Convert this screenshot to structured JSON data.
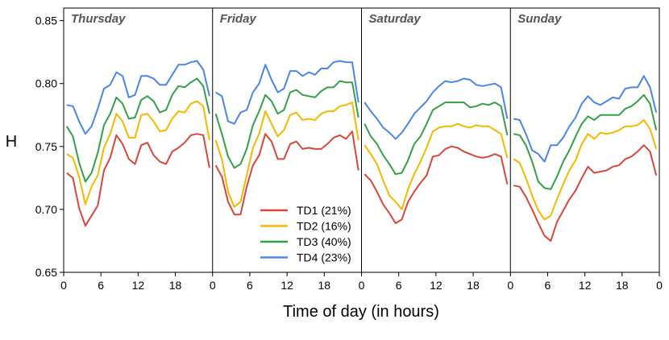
{
  "chart_data": {
    "type": "line",
    "xlabel": "Time of day (in hours)",
    "ylabel": "H",
    "ylim": [
      0.65,
      0.86
    ],
    "y_ticks": [
      "0.65",
      "0.70",
      "0.75",
      "0.80",
      "0.85"
    ],
    "x_tick_labels": [
      "0",
      "6",
      "12",
      "18",
      "0",
      "6",
      "12",
      "18",
      "0",
      "6",
      "12",
      "18",
      "0",
      "6",
      "12",
      "18",
      "0"
    ],
    "panels": [
      "Thursday",
      "Friday",
      "Saturday",
      "Sunday"
    ],
    "grid": false,
    "legend_position": "bottom-center",
    "x_hours": [
      0.5,
      1.5,
      2.5,
      3.5,
      4.5,
      5.5,
      6.5,
      7.5,
      8.5,
      9.5,
      10.5,
      11.5,
      12.5,
      13.5,
      14.5,
      15.5,
      16.5,
      17.5,
      18.5,
      19.5,
      20.5,
      21.5,
      22.5,
      23.5
    ],
    "series": [
      {
        "name": "TD1 (21%)",
        "color": "#d9473b",
        "values": {
          "Thursday": [
            0.729,
            0.725,
            0.701,
            0.687,
            0.695,
            0.703,
            0.731,
            0.741,
            0.759,
            0.752,
            0.74,
            0.736,
            0.751,
            0.753,
            0.743,
            0.738,
            0.736,
            0.746,
            0.749,
            0.753,
            0.759,
            0.76,
            0.759,
            0.733
          ],
          "Friday": [
            0.735,
            0.726,
            0.706,
            0.696,
            0.696,
            0.718,
            0.735,
            0.743,
            0.76,
            0.754,
            0.74,
            0.74,
            0.752,
            0.754,
            0.748,
            0.749,
            0.748,
            0.748,
            0.752,
            0.757,
            0.759,
            0.756,
            0.762,
            0.731
          ],
          "Saturday": [
            0.728,
            0.723,
            0.714,
            0.704,
            0.697,
            0.689,
            0.692,
            0.706,
            0.714,
            0.721,
            0.727,
            0.742,
            0.743,
            0.748,
            0.75,
            0.749,
            0.746,
            0.744,
            0.742,
            0.741,
            0.742,
            0.744,
            0.742,
            0.72
          ],
          "Sunday": [
            0.719,
            0.718,
            0.71,
            0.7,
            0.689,
            0.679,
            0.675,
            0.69,
            0.699,
            0.708,
            0.715,
            0.725,
            0.734,
            0.729,
            0.73,
            0.731,
            0.734,
            0.735,
            0.74,
            0.742,
            0.746,
            0.751,
            0.746,
            0.727
          ]
        }
      },
      {
        "name": "TD2 (16%)",
        "color": "#f5b800",
        "values": {
          "Thursday": [
            0.744,
            0.741,
            0.726,
            0.704,
            0.718,
            0.727,
            0.749,
            0.76,
            0.776,
            0.77,
            0.757,
            0.757,
            0.775,
            0.776,
            0.77,
            0.762,
            0.763,
            0.772,
            0.778,
            0.777,
            0.784,
            0.786,
            0.782,
            0.755
          ],
          "Friday": [
            0.755,
            0.74,
            0.714,
            0.702,
            0.706,
            0.727,
            0.749,
            0.76,
            0.778,
            0.768,
            0.758,
            0.763,
            0.775,
            0.777,
            0.771,
            0.772,
            0.771,
            0.776,
            0.778,
            0.778,
            0.782,
            0.783,
            0.785,
            0.755
          ],
          "Saturday": [
            0.751,
            0.744,
            0.736,
            0.723,
            0.711,
            0.706,
            0.7,
            0.716,
            0.728,
            0.738,
            0.749,
            0.762,
            0.765,
            0.766,
            0.766,
            0.768,
            0.766,
            0.765,
            0.767,
            0.766,
            0.766,
            0.763,
            0.76,
            0.741
          ],
          "Sunday": [
            0.74,
            0.737,
            0.725,
            0.711,
            0.699,
            0.692,
            0.695,
            0.708,
            0.72,
            0.731,
            0.739,
            0.752,
            0.76,
            0.756,
            0.761,
            0.76,
            0.761,
            0.763,
            0.766,
            0.766,
            0.767,
            0.771,
            0.764,
            0.748
          ]
        }
      },
      {
        "name": "TD3 (40%)",
        "color": "#34a047",
        "values": {
          "Thursday": [
            0.766,
            0.758,
            0.737,
            0.722,
            0.729,
            0.745,
            0.767,
            0.776,
            0.789,
            0.784,
            0.772,
            0.773,
            0.787,
            0.79,
            0.786,
            0.777,
            0.779,
            0.791,
            0.798,
            0.797,
            0.801,
            0.804,
            0.798,
            0.776
          ],
          "Friday": [
            0.776,
            0.76,
            0.742,
            0.733,
            0.736,
            0.748,
            0.767,
            0.778,
            0.791,
            0.786,
            0.776,
            0.779,
            0.793,
            0.795,
            0.791,
            0.79,
            0.789,
            0.794,
            0.797,
            0.797,
            0.802,
            0.801,
            0.801,
            0.773
          ],
          "Saturday": [
            0.768,
            0.758,
            0.752,
            0.743,
            0.736,
            0.728,
            0.729,
            0.739,
            0.752,
            0.758,
            0.768,
            0.779,
            0.782,
            0.785,
            0.785,
            0.785,
            0.785,
            0.781,
            0.782,
            0.784,
            0.783,
            0.785,
            0.782,
            0.759
          ],
          "Sunday": [
            0.76,
            0.759,
            0.751,
            0.738,
            0.722,
            0.717,
            0.716,
            0.726,
            0.738,
            0.747,
            0.758,
            0.768,
            0.774,
            0.771,
            0.775,
            0.775,
            0.775,
            0.775,
            0.78,
            0.782,
            0.786,
            0.791,
            0.784,
            0.763
          ]
        }
      },
      {
        "name": "TD4 (23%)",
        "color": "#4a86e8",
        "values": {
          "Thursday": [
            0.783,
            0.782,
            0.77,
            0.76,
            0.766,
            0.78,
            0.796,
            0.799,
            0.809,
            0.806,
            0.789,
            0.791,
            0.806,
            0.806,
            0.804,
            0.799,
            0.799,
            0.807,
            0.815,
            0.815,
            0.817,
            0.818,
            0.811,
            0.79
          ],
          "Friday": [
            0.793,
            0.79,
            0.77,
            0.768,
            0.777,
            0.779,
            0.793,
            0.8,
            0.815,
            0.803,
            0.793,
            0.796,
            0.81,
            0.81,
            0.806,
            0.809,
            0.807,
            0.812,
            0.812,
            0.817,
            0.818,
            0.817,
            0.817,
            0.785
          ],
          "Saturday": [
            0.785,
            0.778,
            0.772,
            0.765,
            0.761,
            0.756,
            0.761,
            0.768,
            0.776,
            0.781,
            0.786,
            0.793,
            0.798,
            0.802,
            0.801,
            0.802,
            0.804,
            0.803,
            0.799,
            0.798,
            0.799,
            0.8,
            0.797,
            0.772
          ],
          "Sunday": [
            0.772,
            0.771,
            0.76,
            0.747,
            0.744,
            0.738,
            0.751,
            0.751,
            0.757,
            0.766,
            0.773,
            0.784,
            0.79,
            0.785,
            0.783,
            0.786,
            0.789,
            0.788,
            0.796,
            0.797,
            0.797,
            0.806,
            0.797,
            0.777
          ]
        }
      }
    ]
  }
}
